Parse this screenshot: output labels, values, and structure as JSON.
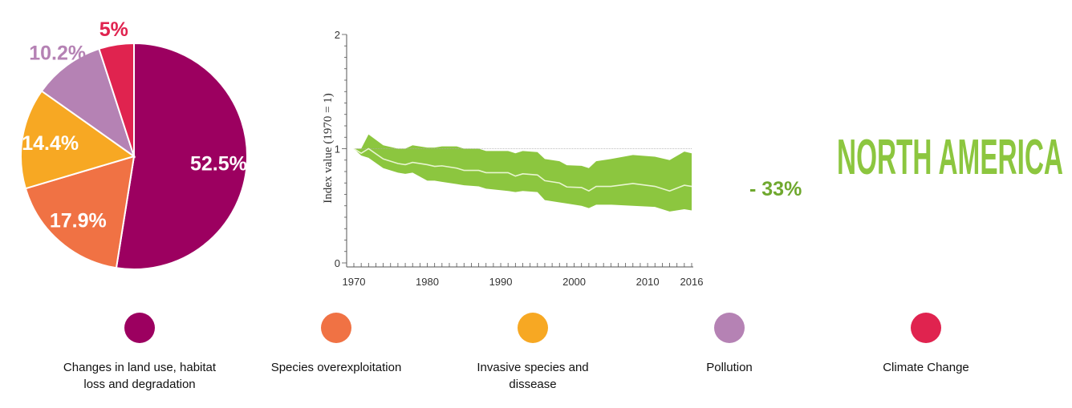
{
  "chart_data": [
    {
      "type": "pie",
      "start": "top",
      "direction": "clockwise",
      "slices": [
        {
          "label": "Changes in land use, habitat loss and degradation",
          "value": 52.5,
          "value_label": "52.5%",
          "color": "#9c0060",
          "label_position": "inside"
        },
        {
          "label": "Species overexploitation",
          "value": 17.9,
          "value_label": "17.9%",
          "color": "#f07244",
          "label_position": "inside"
        },
        {
          "label": "Invasive species and dissease",
          "value": 14.4,
          "value_label": "14.4%",
          "color": "#f7a823",
          "label_position": "inside"
        },
        {
          "label": "Pollution",
          "value": 10.2,
          "value_label": "10.2%",
          "color": "#b582b4",
          "label_position": "outside"
        },
        {
          "label": "Climate Change",
          "value": 5,
          "value_label": "5%",
          "color": "#e0234f",
          "label_position": "outside"
        }
      ]
    },
    {
      "type": "area",
      "title": "NORTH AMERICA",
      "ylabel": "Index value (1970 = 1)",
      "xlabel": "",
      "xlim": [
        1970,
        2016
      ],
      "ylim": [
        0,
        2
      ],
      "x_ticks": [
        1970,
        1980,
        1990,
        2000,
        2010,
        2016
      ],
      "y_ticks": [
        0,
        1,
        2
      ],
      "reference_line": 1,
      "band_color": "#8cc63f",
      "line_color": "#e8f5d0",
      "annotation": "- 33%",
      "annotation_color": "#6fa82e",
      "x": [
        1970,
        1971,
        1972,
        1974,
        1976,
        1977,
        1978,
        1980,
        1981,
        1982,
        1984,
        1985,
        1987,
        1988,
        1991,
        1992,
        1993,
        1995,
        1996,
        1998,
        1999,
        2001,
        2002,
        2003,
        2005,
        2008,
        2011,
        2013,
        2015,
        2016
      ],
      "mean": [
        1.0,
        0.96,
        1.0,
        0.91,
        0.87,
        0.86,
        0.88,
        0.86,
        0.845,
        0.85,
        0.83,
        0.81,
        0.81,
        0.79,
        0.79,
        0.76,
        0.78,
        0.77,
        0.72,
        0.7,
        0.665,
        0.66,
        0.63,
        0.67,
        0.67,
        0.695,
        0.67,
        0.63,
        0.68,
        0.67
      ],
      "upper": [
        1.0,
        1.0,
        1.125,
        1.03,
        1.0,
        1.0,
        1.03,
        1.01,
        1.01,
        1.02,
        1.02,
        1.0,
        1.0,
        0.98,
        0.98,
        0.96,
        0.98,
        0.97,
        0.91,
        0.89,
        0.855,
        0.85,
        0.83,
        0.89,
        0.91,
        0.945,
        0.93,
        0.9,
        0.975,
        0.96
      ],
      "lower": [
        1.0,
        0.94,
        0.92,
        0.83,
        0.79,
        0.78,
        0.79,
        0.72,
        0.72,
        0.71,
        0.69,
        0.68,
        0.67,
        0.65,
        0.63,
        0.62,
        0.63,
        0.62,
        0.55,
        0.53,
        0.52,
        0.5,
        0.48,
        0.51,
        0.51,
        0.5,
        0.49,
        0.45,
        0.47,
        0.46
      ]
    }
  ],
  "title_color": "#8cc63f"
}
